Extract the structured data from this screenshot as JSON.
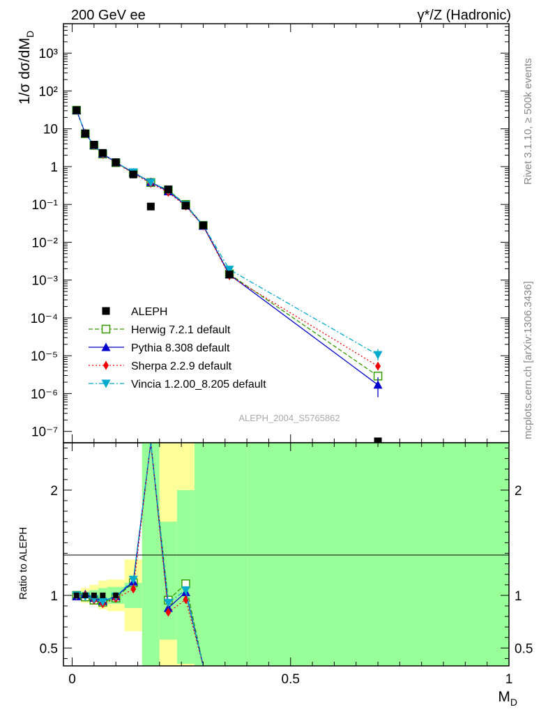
{
  "header": {
    "left": "200 GeV ee",
    "right": "γ*/Z (Hadronic)"
  },
  "side_labels": {
    "top": "Rivet 3.1.10, ≥ 500k events",
    "bottom": "mcplots.cern.ch [arXiv:1306.3436]"
  },
  "watermark": "ALEPH_2004_S5765862",
  "chart_data": [
    {
      "type": "scatter",
      "ylabel": "1/σ  dσ/dM",
      "ylabel_sub": "D",
      "yscale": "log",
      "ylim": [
        5e-08,
        6000
      ],
      "xlim": [
        -0.02,
        1.0
      ],
      "y_tick_labels": [
        "10⁻⁷",
        "10⁻⁶",
        "10⁻⁵",
        "10⁻⁴",
        "10⁻³",
        "10⁻²",
        "10⁻¹",
        "1",
        "10",
        "10²",
        "10³"
      ],
      "legend_position": "lower-left",
      "series": [
        {
          "name": "ALEPH",
          "color": "#000000",
          "marker": "square",
          "x": [
            0.01,
            0.03,
            0.05,
            0.07,
            0.1,
            0.14,
            0.18,
            0.22,
            0.26,
            0.3,
            0.36,
            0.7
          ],
          "y": [
            31,
            7.5,
            3.8,
            2.3,
            1.3,
            0.62,
            0.088,
            0.25,
            0.093,
            0.028,
            0.0014,
            5e-08
          ]
        },
        {
          "name": "Herwig 7.2.1 default",
          "color": "#339900",
          "marker": "open-square",
          "dash": "6,3",
          "x": [
            0.01,
            0.03,
            0.05,
            0.07,
            0.1,
            0.14,
            0.18,
            0.22,
            0.26,
            0.3,
            0.36,
            0.7
          ],
          "y": [
            31,
            7.4,
            3.65,
            2.15,
            1.27,
            0.68,
            0.38,
            0.24,
            0.1,
            0.028,
            0.00145,
            2.9e-06
          ]
        },
        {
          "name": "Pythia 8.308 default",
          "color": "#0000cc",
          "marker": "triangle-up",
          "dash": "",
          "x": [
            0.01,
            0.03,
            0.05,
            0.07,
            0.1,
            0.14,
            0.18,
            0.22,
            0.26,
            0.3,
            0.36,
            0.7
          ],
          "y": [
            30.5,
            7.6,
            3.7,
            2.2,
            1.29,
            0.7,
            0.39,
            0.22,
            0.095,
            0.027,
            0.0014,
            1.7e-06
          ]
        },
        {
          "name": "Sherpa 2.2.9 default",
          "color": "#ee0000",
          "marker": "diamond",
          "dash": "2,3",
          "x": [
            0.01,
            0.03,
            0.05,
            0.07,
            0.1,
            0.14,
            0.18,
            0.22,
            0.26,
            0.3,
            0.36,
            0.7
          ],
          "y": [
            30.8,
            7.5,
            3.6,
            2.1,
            1.26,
            0.66,
            0.36,
            0.21,
            0.09,
            0.027,
            0.0013,
            5.3e-06
          ]
        },
        {
          "name": "Vincia 1.2.00_8.205 default",
          "color": "#00aacc",
          "marker": "triangle-down",
          "dash": "7,3,2,3",
          "x": [
            0.01,
            0.03,
            0.05,
            0.07,
            0.1,
            0.14,
            0.18,
            0.22,
            0.26,
            0.3,
            0.36,
            0.7
          ],
          "y": [
            31,
            7.5,
            3.7,
            2.2,
            1.29,
            0.71,
            0.38,
            0.24,
            0.097,
            0.028,
            0.0019,
            1.05e-05
          ]
        }
      ]
    },
    {
      "type": "line",
      "ylabel": "Ratio to ALEPH",
      "xlabel": "M",
      "xlabel_sub": "D",
      "ylim": [
        0.33,
        2.45
      ],
      "xlim": [
        -0.02,
        1.0
      ],
      "y_ticks": [
        0.5,
        1,
        2
      ],
      "y_tick_labels": [
        "0.5",
        "1",
        "2"
      ],
      "x_ticks": [
        0,
        0.5,
        1
      ],
      "x_tick_labels": [
        "0",
        "0.5",
        "1"
      ],
      "bins": [
        0,
        0.02,
        0.04,
        0.06,
        0.08,
        0.12,
        0.16,
        0.2,
        0.24,
        0.28,
        0.32,
        0.4,
        1.0
      ],
      "band_inner": [
        [
          0.985,
          1.015
        ],
        [
          0.965,
          1.035
        ],
        [
          0.95,
          1.05
        ],
        [
          0.93,
          1.07
        ],
        [
          0.92,
          1.08
        ],
        [
          0.88,
          1.12
        ],
        [
          0.2,
          5
        ],
        [
          0.58,
          1.7
        ],
        [
          0.35,
          2.0
        ],
        [
          0.2,
          5
        ],
        [
          0.2,
          5
        ],
        [
          0.2,
          5
        ]
      ],
      "band_outer": [
        [
          0.975,
          1.025
        ],
        [
          0.93,
          1.07
        ],
        [
          0.91,
          1.1
        ],
        [
          0.87,
          1.14
        ],
        [
          0.85,
          1.15
        ],
        [
          0.66,
          1.34
        ],
        [
          0.2,
          5
        ],
        [
          0.2,
          5
        ],
        [
          0.2,
          5
        ],
        [
          0.2,
          5
        ],
        [
          0.2,
          5
        ],
        [
          0.2,
          5
        ]
      ],
      "series": [
        {
          "name": "Herwig 7.2.1 default",
          "color": "#339900",
          "marker": "open-square",
          "dash": "6,3",
          "x": [
            0.01,
            0.03,
            0.05,
            0.07,
            0.1,
            0.14,
            0.18,
            0.22,
            0.26,
            0.3
          ],
          "y": [
            1.0,
            0.985,
            0.955,
            0.935,
            0.975,
            1.12,
            4.5,
            0.955,
            1.11,
            0.1
          ]
        },
        {
          "name": "Pythia 8.308 default",
          "color": "#0000cc",
          "marker": "triangle-up",
          "dash": "",
          "x": [
            0.01,
            0.03,
            0.05,
            0.07,
            0.1,
            0.14,
            0.18,
            0.22,
            0.26,
            0.3
          ],
          "y": [
            0.99,
            1.01,
            0.975,
            0.945,
            0.99,
            1.13,
            4.5,
            0.88,
            1.03,
            0.1
          ]
        },
        {
          "name": "Sherpa 2.2.9 default",
          "color": "#ee0000",
          "marker": "diamond",
          "dash": "2,3",
          "x": [
            0.01,
            0.03,
            0.05,
            0.07,
            0.1,
            0.14,
            0.18,
            0.22,
            0.26,
            0.3
          ],
          "y": [
            0.995,
            1.0,
            0.955,
            0.92,
            0.97,
            1.06,
            4.5,
            0.84,
            0.96,
            0.1
          ]
        },
        {
          "name": "Vincia 1.2.00_8.205 default",
          "color": "#00aacc",
          "marker": "triangle-down",
          "dash": "7,3,2,3",
          "x": [
            0.01,
            0.03,
            0.05,
            0.07,
            0.1,
            0.14,
            0.18,
            0.22,
            0.26,
            0.3
          ],
          "y": [
            1.0,
            0.99,
            0.965,
            0.94,
            0.99,
            1.15,
            4.5,
            0.93,
            1.05,
            0.1
          ]
        }
      ]
    }
  ]
}
